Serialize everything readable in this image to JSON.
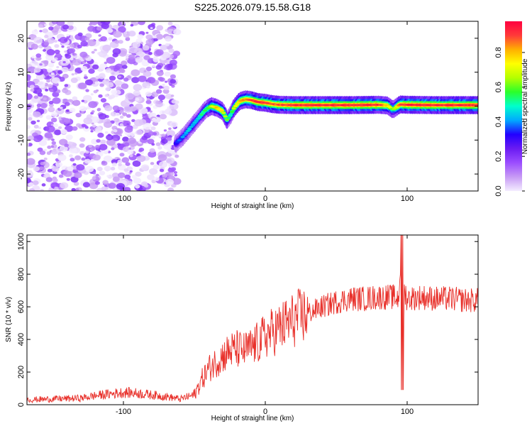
{
  "title": "S225.2026.079.15.58.G18",
  "chart_data": [
    {
      "type": "heatmap",
      "title": "S225.2026.079.15.58.G18",
      "xlabel": "Height of straight line (km)",
      "ylabel": "Frequency (Hz)",
      "xlim": [
        -168,
        150
      ],
      "ylim": [
        -25,
        25
      ],
      "x_ticks": [
        -100,
        0,
        100
      ],
      "y_ticks": [
        -20,
        -10,
        0,
        10,
        20
      ],
      "noise_region": {
        "x_range": [
          -168,
          -62
        ],
        "description_note": "scattered low-amplitude speckle"
      },
      "ridge": {
        "x": [
          -63,
          -58,
          -52,
          -46,
          -42,
          -38,
          -34,
          -30,
          -27,
          -25,
          -22,
          -18,
          -14,
          -10,
          -5,
          0,
          5,
          10,
          20,
          40,
          60,
          80,
          86,
          90,
          95,
          100,
          120,
          150
        ],
        "freq": [
          -11,
          -9,
          -6,
          -3,
          -1,
          0,
          -0.5,
          -1.5,
          -4,
          -3,
          -0.5,
          1.5,
          2,
          1.8,
          1.2,
          1,
          0.6,
          0.4,
          0.3,
          0.3,
          0.3,
          0.4,
          0.2,
          -1,
          0.5,
          0.4,
          0.3,
          0.3
        ],
        "amplitude": [
          0.35,
          0.4,
          0.45,
          0.5,
          0.55,
          0.7,
          0.8,
          0.75,
          0.6,
          0.5,
          0.7,
          0.8,
          0.85,
          0.9,
          0.95,
          0.95,
          0.9,
          0.9,
          0.95,
          0.95,
          0.95,
          0.95,
          0.8,
          0.6,
          0.9,
          0.95,
          0.95,
          0.95
        ]
      }
    },
    {
      "type": "line",
      "xlabel": "Height of straight line (km)",
      "ylabel": "SNR (10 * v/v)",
      "xlim": [
        -168,
        150
      ],
      "ylim": [
        0,
        1040
      ],
      "x_ticks": [
        -100,
        0,
        100
      ],
      "y_ticks": [
        0,
        200,
        400,
        600,
        800,
        1000
      ],
      "series": [
        {
          "name": "SNR",
          "color": "#e8302a",
          "x": [
            -168,
            -150,
            -130,
            -120,
            -110,
            -100,
            -90,
            -80,
            -70,
            -60,
            -50,
            -45,
            -40,
            -35,
            -30,
            -25,
            -20,
            -15,
            -10,
            -5,
            0,
            10,
            20,
            30,
            40,
            50,
            60,
            70,
            80,
            90,
            94,
            96,
            97,
            98,
            100,
            110,
            120,
            130,
            140,
            150
          ],
          "values": [
            30,
            35,
            40,
            55,
            65,
            75,
            70,
            60,
            50,
            35,
            60,
            150,
            220,
            260,
            300,
            330,
            340,
            330,
            350,
            380,
            420,
            470,
            520,
            560,
            600,
            630,
            650,
            650,
            660,
            660,
            650,
            1000,
            100,
            700,
            650,
            660,
            650,
            650,
            640,
            640
          ]
        }
      ],
      "annotations": [
        {
          "x": 96.5,
          "y_max": 1040,
          "y_min": 90,
          "note": "spike"
        }
      ]
    }
  ],
  "colorbar": {
    "label": "Normalized spectral amplitude",
    "ticks": [
      0,
      0.2,
      0.4,
      0.6,
      0.8
    ],
    "tick_labels": [
      "0.0",
      "0.2",
      "0.4",
      "0.6",
      "0.8"
    ],
    "colors": [
      "#f4edff",
      "#c79af5",
      "#9b4dff",
      "#6a1bf2",
      "#2200ff",
      "#00aaff",
      "#00ffcc",
      "#2aff2a",
      "#b4ff00",
      "#ffff00",
      "#ffb000",
      "#ff3a3a",
      "#ff0040"
    ]
  }
}
